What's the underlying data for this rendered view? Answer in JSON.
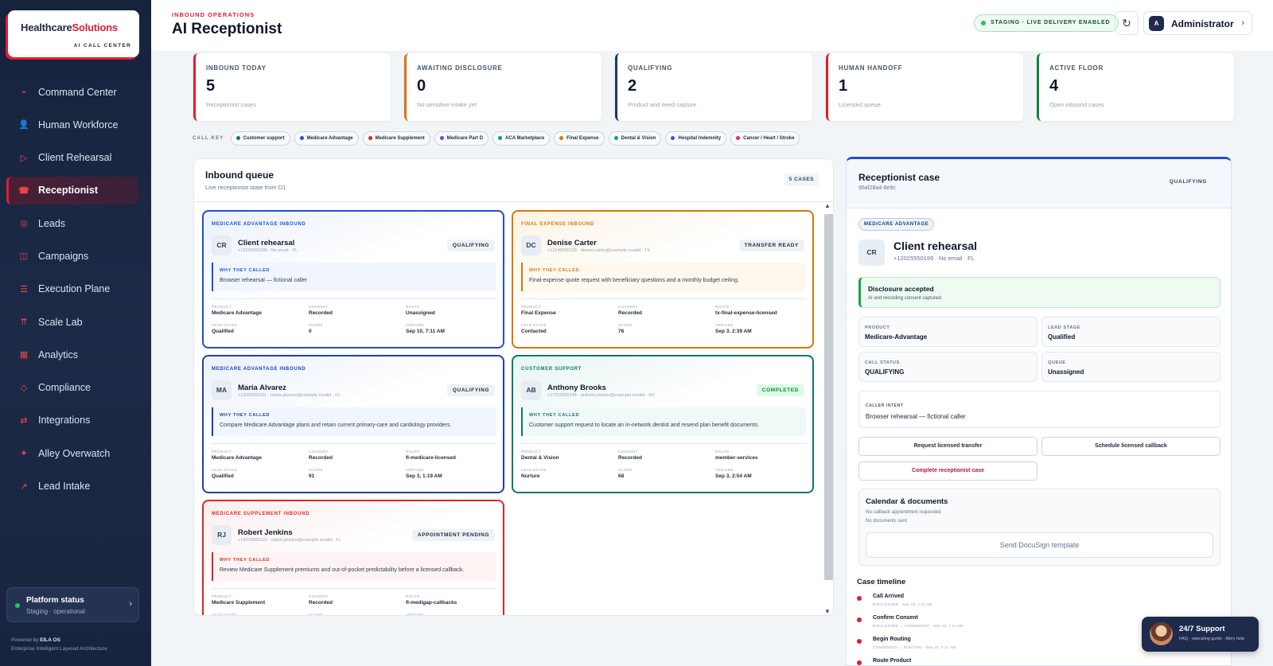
{
  "brand": {
    "name_a": "Healthcare",
    "name_b": "Solutions",
    "tagline": "AI CALL CENTER"
  },
  "sidebar": {
    "items": [
      {
        "label": "Command Center",
        "icon": "pulse-icon",
        "glyph": "⌁"
      },
      {
        "label": "Human Workforce",
        "icon": "person-icon",
        "glyph": "👤"
      },
      {
        "label": "Client Rehearsal",
        "icon": "play-icon",
        "glyph": "▷"
      },
      {
        "label": "Receptionist",
        "icon": "phone-icon",
        "glyph": "☎"
      },
      {
        "label": "Leads",
        "icon": "target-icon",
        "glyph": "◎"
      },
      {
        "label": "Campaigns",
        "icon": "book-icon",
        "glyph": "◫"
      },
      {
        "label": "Execution Plane",
        "icon": "sliders-icon",
        "glyph": "☰"
      },
      {
        "label": "Scale Lab",
        "icon": "arrows-up-icon",
        "glyph": "⇈"
      },
      {
        "label": "Analytics",
        "icon": "chart-icon",
        "glyph": "▦"
      },
      {
        "label": "Compliance",
        "icon": "diamond-icon",
        "glyph": "◇"
      },
      {
        "label": "Integrations",
        "icon": "swap-icon",
        "glyph": "⇄"
      },
      {
        "label": "Alley Overwatch",
        "icon": "sparkle-icon",
        "glyph": "✦"
      },
      {
        "label": "Lead Intake",
        "icon": "arrow-up-right-icon",
        "glyph": "↗"
      }
    ],
    "active_index": 3
  },
  "platform_status": {
    "title": "Platform status",
    "subtitle": "Staging · operational"
  },
  "powered": {
    "prefix": "Powered by ",
    "name": "EILA OS",
    "desc": "Enterprise Intelligent Layered Architecture"
  },
  "header": {
    "kicker": "INBOUND OPERATIONS",
    "title": "AI Receptionist",
    "staging": "STAGING · LIVE DELIVERY ENABLED",
    "user": "Administrator",
    "user_initial": "A"
  },
  "stats": [
    {
      "label": "INBOUND TODAY",
      "value": "5",
      "sub": "Receptionist cases",
      "color": "#e11d2e"
    },
    {
      "label": "AWAITING DISCLOSURE",
      "value": "0",
      "sub": "No sensitive intake yet",
      "color": "#d97706"
    },
    {
      "label": "QUALIFYING",
      "value": "2",
      "sub": "Product and need capture",
      "color": "#1e3a5f"
    },
    {
      "label": "HUMAN HANDOFF",
      "value": "1",
      "sub": "Licensed queue",
      "color": "#e11d2e"
    },
    {
      "label": "ACTIVE FLOOR",
      "value": "4",
      "sub": "Open inbound cases",
      "color": "#15803d"
    }
  ],
  "call_key": {
    "label": "CALL KEY",
    "items": [
      {
        "label": "Customer support",
        "color": "#0f766e"
      },
      {
        "label": "Medicare Advantage",
        "color": "#1d4ed8"
      },
      {
        "label": "Medicare Supplement",
        "color": "#dc2626"
      },
      {
        "label": "Medicare Part D",
        "color": "#7c3aed"
      },
      {
        "label": "ACA Marketplace",
        "color": "#0891b2"
      },
      {
        "label": "Final Expense",
        "color": "#d97706"
      },
      {
        "label": "Dental & Vision",
        "color": "#16a34a"
      },
      {
        "label": "Hospital Indemnity",
        "color": "#4f46e5"
      },
      {
        "label": "Cancer / Heart / Stroke",
        "color": "#db2777"
      }
    ]
  },
  "queue": {
    "title": "Inbound queue",
    "subtitle": "Live receptionist state from D1",
    "count": "5 CASES",
    "field_labels": {
      "product": "PRODUCT",
      "consent": "CONSENT",
      "route": "ROUTE",
      "lead_stage": "LEAD STAGE",
      "score": "SCORE",
      "arrived": "ARRIVED"
    },
    "why_label": "WHY THEY CALLED",
    "cards": [
      {
        "category": "MEDICARE ADVANTAGE INBOUND",
        "initials": "CR",
        "name": "Client rehearsal",
        "contact": "+12025550199 · No email · FL",
        "status": "QUALIFYING",
        "why": "Browser rehearsal — fictional caller",
        "product": "Medicare Advantage",
        "consent": "Recorded",
        "route": "Unassigned",
        "lead_stage": "Qualified",
        "score": "0",
        "arrived": "Sep 10, 7:11 AM",
        "color": "#1d4ed8",
        "bg": "#eaf1fd",
        "wb": "#f1f6fe"
      },
      {
        "category": "FINAL EXPENSE INBOUND",
        "initials": "DC",
        "name": "Denise Carter",
        "contact": "+12145550133 · denise.carter@example.invalid · TX",
        "status": "TRANSFER READY",
        "why": "Final-expense quote request with beneficiary questions and a monthly budget ceiling.",
        "product": "Final Expense",
        "consent": "Recorded",
        "route": "tx-final-expense-licensed",
        "lead_stage": "Contacted",
        "score": "76",
        "arrived": "Sep 3, 2:39 AM",
        "color": "#d97706",
        "bg": "#fdf3e4",
        "wb": "#fef8ef"
      },
      {
        "category": "MEDICARE ADVANTAGE INBOUND",
        "initials": "MA",
        "name": "Maria Alvarez",
        "contact": "+13055550111 · maria.alvarez@example.invalid · FL",
        "status": "QUALIFYING",
        "why": "Compare Medicare Advantage plans and retain current primary-care and cardiology providers.",
        "product": "Medicare Advantage",
        "consent": "Recorded",
        "route": "fl-medicare-licensed",
        "lead_stage": "Qualified",
        "score": "91",
        "arrived": "Sep 3, 1:19 AM",
        "color": "#1e40af",
        "bg": "#eaf1fd",
        "wb": "#f1f6fe"
      },
      {
        "category": "CUSTOMER SUPPORT",
        "initials": "AB",
        "name": "Anthony Brooks",
        "contact": "+17025550144 · anthony.brooks@example.invalid · NV",
        "status": "COMPLETED",
        "why": "Customer support request to locate an in-network dentist and resend plan benefit documents.",
        "product": "Dental & Vision",
        "consent": "Recorded",
        "route": "member-services",
        "lead_stage": "Nurture",
        "score": "68",
        "arrived": "Sep 3, 2:54 AM",
        "color": "#0f766e",
        "bg": "#e6f5f2",
        "wb": "#eff9f7"
      },
      {
        "category": "MEDICARE SUPPLEMENT INBOUND",
        "initials": "RJ",
        "name": "Robert Jenkins",
        "contact": "+14075550122 · robert.jenkins@example.invalid · FL",
        "status": "APPOINTMENT PENDING",
        "why": "Review Medicare Supplement premiums and out-of-pocket predictability before a licensed callback.",
        "product": "Medicare Supplement",
        "consent": "Recorded",
        "route": "fl-medigap-callbacks",
        "lead_stage": "",
        "score": "",
        "arrived": "",
        "color": "#dc2626",
        "bg": "#fdeeee",
        "wb": "#fef3f3"
      }
    ]
  },
  "case": {
    "title": "Receptionist case",
    "id": "95af28a4-8e9c",
    "status": "QUALIFYING",
    "product_pill": "MEDICARE ADVANTAGE",
    "initials": "CR",
    "name": "Client rehearsal",
    "phone": "+12025550199 · No email · FL",
    "disclosure_title": "Disclosure accepted",
    "disclosure_sub": "AI and recording consent captured.",
    "fields": {
      "product_label": "PRODUCT",
      "product": "Medicare-Advantage",
      "lead_stage_label": "LEAD STAGE",
      "lead_stage": "Qualified",
      "call_status_label": "CALL STATUS",
      "call_status": "QUALIFYING",
      "queue_label": "QUEUE",
      "queue": "Unassigned"
    },
    "intent_label": "CALLER INTENT",
    "intent": "Browser rehearsal — fictional caller",
    "btn_transfer": "Request licensed transfer",
    "btn_callback": "Schedule licensed callback",
    "btn_complete": "Complete receptionist case",
    "calendar_title": "Calendar & documents",
    "calendar_line1": "No callback appointment requested.",
    "calendar_line2": "No documents sent.",
    "docusign": "Send DocuSign template",
    "timeline_title": "Case timeline",
    "timeline": [
      {
        "name": "Call Arrived",
        "meta": "DISCLOSURE · Sep 10, 7:11 AM"
      },
      {
        "name": "Confirm Consent",
        "meta": "DISCLOSURE → CONSENTED · Sep 10, 7:11 AM"
      },
      {
        "name": "Begin Routing",
        "meta": "CONSENTED → ROUTING · Sep 10, 7:11 AM"
      },
      {
        "name": "Route Product",
        "meta": ""
      }
    ]
  },
  "support": {
    "title": "24/7 Support",
    "subtitle": "FAQ · operating guide · Alley help"
  }
}
